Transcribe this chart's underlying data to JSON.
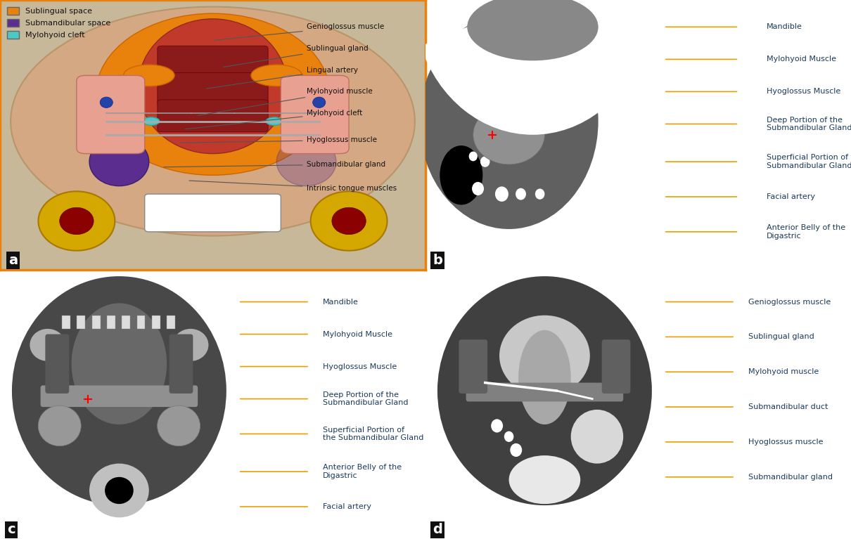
{
  "bg_color": "#ffffff",
  "border_color": "#E8820C",
  "border_width": 3,
  "panel_a": {
    "label": "a",
    "bg_color": "#f5e6d0",
    "legend": [
      {
        "label": "Sublingual space",
        "color": "#E8820C"
      },
      {
        "label": "Submandibular space",
        "color": "#5B2D8E"
      },
      {
        "label": "Mylohyoid cleft",
        "color": "#4DC8C8"
      }
    ],
    "annotations": [
      "Genioglossus muscle",
      "Sublingual gland",
      "Lingual artery",
      "Mylohyoid muscle",
      "Mylohyoid cleft",
      "Hyoglossus muscle",
      "Submandibular gland",
      "Intrinsic tongue muscles"
    ]
  },
  "panel_b": {
    "label": "b",
    "annotations": [
      "Mandible",
      "Mylohyoid Muscle",
      "Hyoglossus Muscle",
      "Deep Portion of the\nSubmandibular Gland",
      "Superficial Portion of the\nSubmandibular Gland",
      "Facial artery",
      "Anterior Belly of the\nDigastric"
    ],
    "line_color": "#E8A000"
  },
  "panel_c": {
    "label": "c",
    "annotations": [
      "Mandible",
      "Mylohyoid Muscle",
      "Hyoglossus Muscle",
      "Deep Portion of the\nSubmandibular Gland",
      "Superficial Portion of\nthe Submandibular Gland",
      "Anterior Belly of the\nDigastric",
      "Facial artery"
    ],
    "line_color": "#E8A000"
  },
  "panel_d": {
    "label": "d",
    "annotations": [
      "Genioglossus muscle",
      "Sublingual gland",
      "Mylohyoid muscle",
      "Submandibular duct",
      "Hyoglossus muscle",
      "Submandibular gland"
    ],
    "line_color": "#E8A000"
  },
  "label_color": "#1a3a5c",
  "label_fontsize": 9,
  "panel_label_fontsize": 12,
  "panel_label_color": "#ffffff",
  "panel_label_bg": "#222222"
}
